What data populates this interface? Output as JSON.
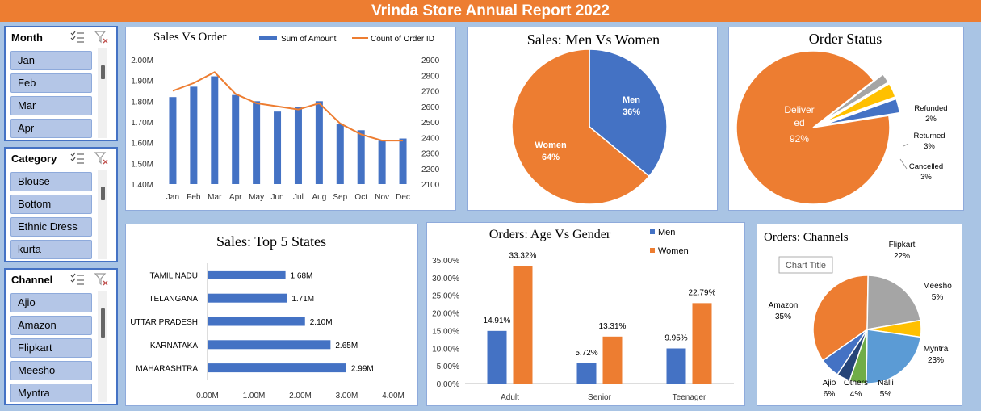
{
  "title": "Vrinda Store Annual Report 2022",
  "colors": {
    "blue": "#4472c4",
    "orange": "#ed7d31",
    "gray": "#a5a5a5",
    "yellow": "#ffc000",
    "lightblue": "#5b9bd5",
    "green": "#70ad47",
    "darkblue": "#264478"
  },
  "slicers": [
    {
      "title": "Month",
      "items": [
        "Jan",
        "Feb",
        "Mar",
        "Apr"
      ]
    },
    {
      "title": "Category",
      "items": [
        "Blouse",
        "Bottom",
        "Ethnic Dress",
        "kurta"
      ]
    },
    {
      "title": "Channel",
      "items": [
        "Ajio",
        "Amazon",
        "Flipkart",
        "Meesho",
        "Myntra"
      ]
    }
  ],
  "tooltip": "Chart Title",
  "chart_data": [
    {
      "id": "sales_vs_order",
      "type": "bar",
      "title": "Sales Vs Order",
      "categories": [
        "Jan",
        "Feb",
        "Mar",
        "Apr",
        "May",
        "Jun",
        "Jul",
        "Aug",
        "Sep",
        "Oct",
        "Nov",
        "Dec"
      ],
      "series": [
        {
          "name": "Sum of Amount",
          "type": "bar",
          "axis": "left",
          "values": [
            1.82,
            1.87,
            1.92,
            1.83,
            1.8,
            1.75,
            1.77,
            1.8,
            1.69,
            1.66,
            1.61,
            1.62
          ]
        },
        {
          "name": "Count of Order ID",
          "type": "line",
          "axis": "right",
          "values": [
            2700,
            2750,
            2820,
            2680,
            2620,
            2600,
            2580,
            2620,
            2490,
            2420,
            2380,
            2380
          ]
        }
      ],
      "y_left": {
        "min": 1.4,
        "max": 2.0,
        "ticks": [
          "1.40M",
          "1.50M",
          "1.60M",
          "1.70M",
          "1.80M",
          "1.90M",
          "2.00M"
        ]
      },
      "y_right": {
        "min": 2100,
        "max": 2900,
        "ticks": [
          "2100",
          "2200",
          "2300",
          "2400",
          "2500",
          "2600",
          "2700",
          "2800",
          "2900"
        ]
      },
      "legend": "top"
    },
    {
      "id": "men_vs_women",
      "type": "pie",
      "title": "Sales: Men Vs Women",
      "slices": [
        {
          "name": "Men",
          "value": 36,
          "label": "36%"
        },
        {
          "name": "Women",
          "value": 64,
          "label": "64%"
        }
      ]
    },
    {
      "id": "order_status",
      "type": "pie",
      "title": "Order Status",
      "slices": [
        {
          "name": "Delivered",
          "value": 92,
          "label": "92%",
          "display_name": [
            "Deliver",
            "ed"
          ]
        },
        {
          "name": "Refunded",
          "value": 2,
          "label": "2%"
        },
        {
          "name": "Returned",
          "value": 3,
          "label": "3%"
        },
        {
          "name": "Cancelled",
          "value": 3,
          "label": "3%"
        }
      ]
    },
    {
      "id": "top5_states",
      "type": "bar",
      "orientation": "horizontal",
      "title": "Sales: Top 5 States",
      "categories": [
        "TAMIL NADU",
        "TELANGANA",
        "UTTAR PRADESH",
        "KARNATAKA",
        "MAHARASHTRA"
      ],
      "values": [
        1.68,
        1.71,
        2.1,
        2.65,
        2.99
      ],
      "labels": [
        "1.68M",
        "1.71M",
        "2.10M",
        "2.65M",
        "2.99M"
      ],
      "xlim": [
        0,
        4
      ],
      "x_ticks": [
        "0.00M",
        "1.00M",
        "2.00M",
        "3.00M",
        "4.00M"
      ]
    },
    {
      "id": "age_vs_gender",
      "type": "bar",
      "title": "Orders: Age Vs Gender",
      "categories": [
        "Adult",
        "Senior",
        "Teenager"
      ],
      "series": [
        {
          "name": "Men",
          "values": [
            14.91,
            5.72,
            9.95
          ],
          "labels": [
            "14.91%",
            "5.72%",
            "9.95%"
          ]
        },
        {
          "name": "Women",
          "values": [
            33.32,
            13.31,
            22.79
          ],
          "labels": [
            "33.32%",
            "13.31%",
            "22.79%"
          ]
        }
      ],
      "ylim": [
        0,
        35
      ],
      "y_ticks": [
        "0.00%",
        "5.00%",
        "10.00%",
        "15.00%",
        "20.00%",
        "25.00%",
        "30.00%",
        "35.00%"
      ],
      "legend": "top-right"
    },
    {
      "id": "channels",
      "type": "pie",
      "title": "Orders: Channels",
      "slices": [
        {
          "name": "Amazon",
          "value": 35,
          "label": "35%"
        },
        {
          "name": "Flipkart",
          "value": 22,
          "label": "22%"
        },
        {
          "name": "Meesho",
          "value": 5,
          "label": "5%"
        },
        {
          "name": "Myntra",
          "value": 23,
          "label": "23%"
        },
        {
          "name": "Nalli",
          "value": 5,
          "label": "5%"
        },
        {
          "name": "Others",
          "value": 4,
          "label": "4%"
        },
        {
          "name": "Ajio",
          "value": 6,
          "label": "6%"
        }
      ]
    }
  ]
}
